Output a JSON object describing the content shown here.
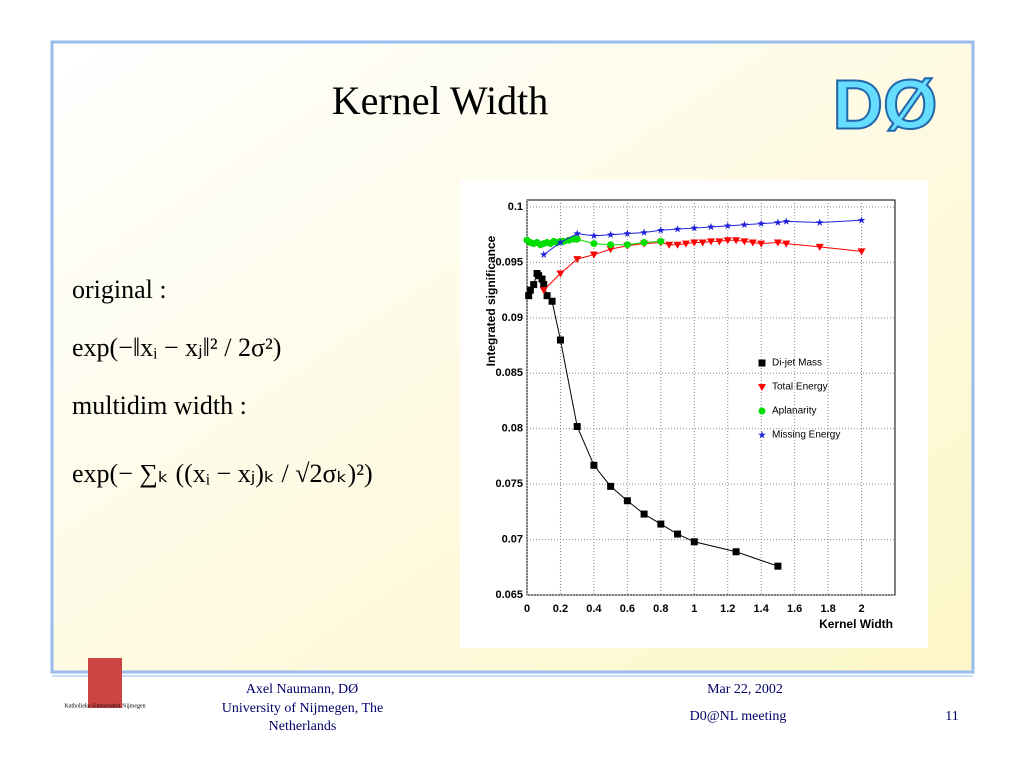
{
  "slide": {
    "title": "Kernel Width",
    "logo_text": "DØ",
    "lines": [
      "original :",
      "exp(−‖xᵢ − xⱼ‖² / 2σ²)",
      "multidim width :",
      "exp(− ∑ₖ ((xᵢ − xⱼ)ₖ / √2σₖ)²)"
    ],
    "footer": {
      "university_logo": "Katholieke Universiteit Nijmegen",
      "author": "Axel Naumann, DØ",
      "affiliation": "University of  Nijmegen, The Netherlands",
      "date": "Mar 22, 2002",
      "meeting": "D0@NL meeting",
      "page": "11"
    }
  },
  "chart_data": {
    "type": "scatter",
    "x_label": "Kernel Width",
    "y_label": "Integrated significance",
    "xlim": [
      0,
      2.2
    ],
    "ylim": [
      0.065,
      0.1
    ],
    "xticks": [
      0,
      0.2,
      0.4,
      0.6,
      0.8,
      1,
      1.2,
      1.4,
      1.6,
      1.8,
      2
    ],
    "yticks": [
      0.065,
      0.07,
      0.075,
      0.08,
      0.085,
      0.09,
      0.095,
      0.1
    ],
    "grid": true,
    "series": [
      {
        "name": "Di-jet Mass",
        "color": "#000000",
        "marker": "square",
        "x": [
          0.01,
          0.02,
          0.04,
          0.06,
          0.07,
          0.09,
          0.1,
          0.12,
          0.15,
          0.2,
          0.3,
          0.4,
          0.5,
          0.6,
          0.7,
          0.8,
          0.9,
          1.0,
          1.25,
          1.5
        ],
        "values": [
          0.092,
          0.0925,
          0.093,
          0.094,
          0.0938,
          0.0935,
          0.093,
          0.092,
          0.0915,
          0.088,
          0.0802,
          0.0767,
          0.0748,
          0.0735,
          0.0723,
          0.0714,
          0.0705,
          0.0698,
          0.0689,
          0.0676
        ]
      },
      {
        "name": "Total Energy",
        "color": "#ff0000",
        "marker": "triangle",
        "x": [
          0.1,
          0.2,
          0.3,
          0.4,
          0.5,
          0.6,
          0.7,
          0.8,
          0.85,
          0.9,
          0.95,
          1.0,
          1.05,
          1.1,
          1.15,
          1.2,
          1.25,
          1.3,
          1.35,
          1.4,
          1.5,
          1.55,
          1.75,
          2.0
        ],
        "values": [
          0.0925,
          0.094,
          0.0953,
          0.0957,
          0.0962,
          0.0965,
          0.0967,
          0.0968,
          0.0966,
          0.0966,
          0.0967,
          0.0968,
          0.0968,
          0.0969,
          0.0969,
          0.097,
          0.097,
          0.0969,
          0.0968,
          0.0967,
          0.0968,
          0.0967,
          0.0964,
          0.096
        ]
      },
      {
        "name": "Aplanarity",
        "color": "#00dd00",
        "marker": "circle",
        "x": [
          0.0,
          0.02,
          0.04,
          0.06,
          0.08,
          0.1,
          0.12,
          0.14,
          0.16,
          0.18,
          0.2,
          0.22,
          0.25,
          0.28,
          0.3,
          0.4,
          0.5,
          0.6,
          0.7,
          0.8
        ],
        "values": [
          0.097,
          0.0968,
          0.0967,
          0.0968,
          0.0966,
          0.0967,
          0.0968,
          0.0967,
          0.0969,
          0.0968,
          0.0969,
          0.0969,
          0.097,
          0.0971,
          0.0971,
          0.0967,
          0.0966,
          0.0966,
          0.0968,
          0.0969
        ]
      },
      {
        "name": "Missing Energy",
        "color": "#2222dd",
        "marker": "star",
        "x": [
          0.1,
          0.2,
          0.3,
          0.4,
          0.5,
          0.6,
          0.7,
          0.8,
          0.9,
          1.0,
          1.1,
          1.2,
          1.3,
          1.4,
          1.5,
          1.55,
          1.75,
          2.0
        ],
        "values": [
          0.0957,
          0.0968,
          0.0976,
          0.0974,
          0.0975,
          0.0976,
          0.0977,
          0.0979,
          0.098,
          0.0981,
          0.0982,
          0.0983,
          0.0984,
          0.0985,
          0.0986,
          0.0987,
          0.0986,
          0.0988
        ]
      }
    ]
  }
}
